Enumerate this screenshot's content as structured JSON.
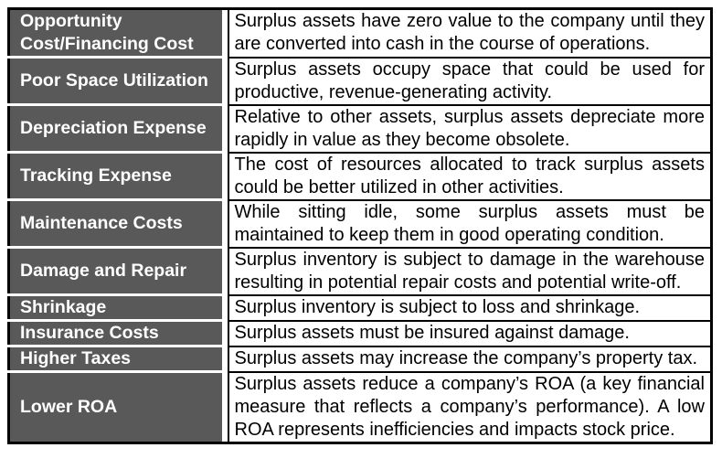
{
  "table": {
    "colors": {
      "header_bg": "#595959",
      "header_text": "#ffffff",
      "body_text": "#000000",
      "border": "#000000"
    },
    "rows": [
      {
        "label": "Opportunity Cost/Financing Cost",
        "description": "Surplus assets have zero value to the company until they are converted into cash in the course of operations."
      },
      {
        "label": "Poor Space Utilization",
        "description": "Surplus assets occupy space that could be used for productive, revenue-generating activity."
      },
      {
        "label": "Depreciation Expense",
        "description": "Relative to other assets, surplus assets depreciate more rapidly in value as they become obsolete."
      },
      {
        "label": "Tracking Expense",
        "description": "The cost of resources allocated to track surplus assets could be better utilized in other activities."
      },
      {
        "label": "Maintenance Costs",
        "description": "While sitting idle, some surplus assets must be maintained to keep them in good operating condition."
      },
      {
        "label": "Damage and Repair",
        "description": "Surplus inventory is subject to damage in the warehouse resulting in potential repair costs and potential write-off."
      },
      {
        "label": "Shrinkage",
        "description": "Surplus inventory is subject to loss and shrinkage."
      },
      {
        "label": "Insurance Costs",
        "description": "Surplus assets must be insured against damage."
      },
      {
        "label": "Higher Taxes",
        "description": "Surplus assets may increase the company’s property tax."
      },
      {
        "label": "Lower ROA",
        "description": "Surplus assets reduce a company’s ROA (a key financial measure that reflects a company’s performance). A low ROA represents inefficiencies and impacts stock price."
      }
    ]
  }
}
